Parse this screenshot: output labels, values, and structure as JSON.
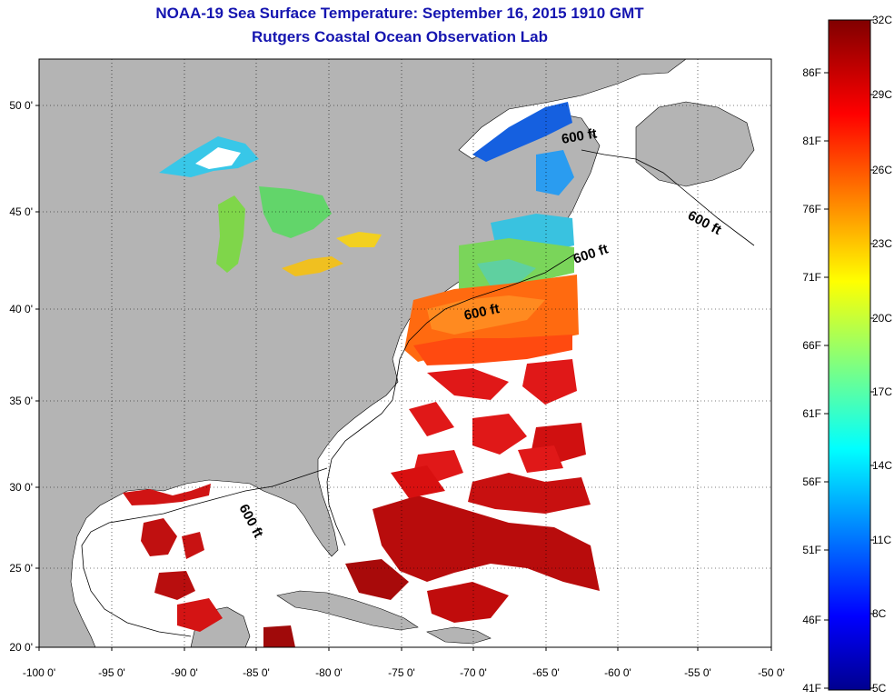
{
  "title": "NOAA-19 Sea Surface Temperature:  September 16, 2015 1910 GMT",
  "subtitle": "Rutgers Coastal Ocean Observation Lab",
  "lat_labels": [
    "50 0'",
    "45 0'",
    "40 0'",
    "35 0'",
    "30 0'",
    "25 0'",
    "20 0'"
  ],
  "lon_labels": [
    "-100 0'",
    "-95 0'",
    "-90 0'",
    "-85 0'",
    "-80 0'",
    "-75 0'",
    "-70 0'",
    "-65 0'",
    "-60 0'",
    "-55 0'",
    "-50 0'"
  ],
  "contour_label": "600 ft",
  "colorbar": {
    "fahrenheit": [
      "86F",
      "81F",
      "76F",
      "71F",
      "66F",
      "61F",
      "56F",
      "51F",
      "46F",
      "41F"
    ],
    "celsius": [
      "32C",
      "29C",
      "26C",
      "23C",
      "20C",
      "17C",
      "14C",
      "11C",
      "8C",
      "5C"
    ]
  },
  "colors": {
    "land": "#b4b4b4",
    "no_data": "#ffffff",
    "title": "#1515b0"
  }
}
